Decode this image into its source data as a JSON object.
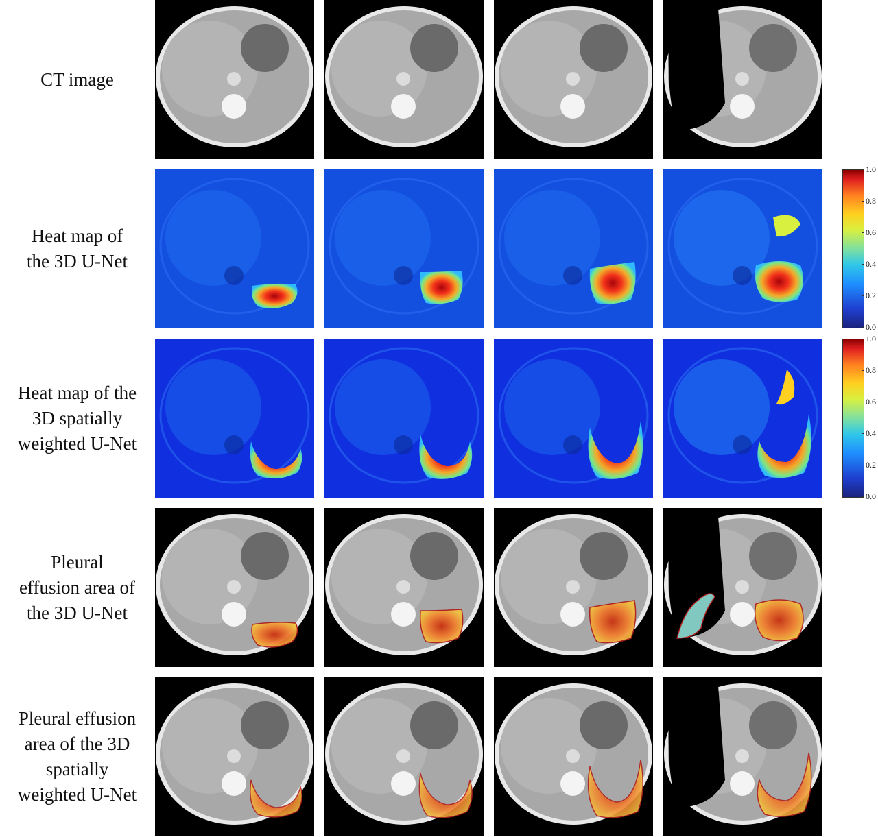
{
  "rows": [
    {
      "id": "ct",
      "label_lines": [
        "CT image"
      ],
      "kind": "ct"
    },
    {
      "id": "heat-unet",
      "label_lines": [
        "Heat map of",
        "the 3D U-Net"
      ],
      "kind": "heat1"
    },
    {
      "id": "heat-swunet",
      "label_lines": [
        "Heat map of the",
        "3D spatially",
        "weighted U-Net"
      ],
      "kind": "heat2"
    },
    {
      "id": "area-unet",
      "label_lines": [
        "Pleural",
        "effusion area of",
        "the 3D U-Net"
      ],
      "kind": "seg1"
    },
    {
      "id": "area-swunet",
      "label_lines": [
        "Pleural effusion",
        "area of the 3D",
        "spatially",
        "weighted U-Net"
      ],
      "kind": "seg2"
    }
  ],
  "colorbar": {
    "ticks": [
      "1.0",
      "0.8",
      "0.6",
      "0.4",
      "0.2",
      "0.0"
    ],
    "colors": [
      "#8b0000",
      "#e02020",
      "#ff8020",
      "#ffd020",
      "#7fe0a0",
      "#30c8e8",
      "#1e90ff",
      "#1e3fd0",
      "#1a237e"
    ]
  }
}
